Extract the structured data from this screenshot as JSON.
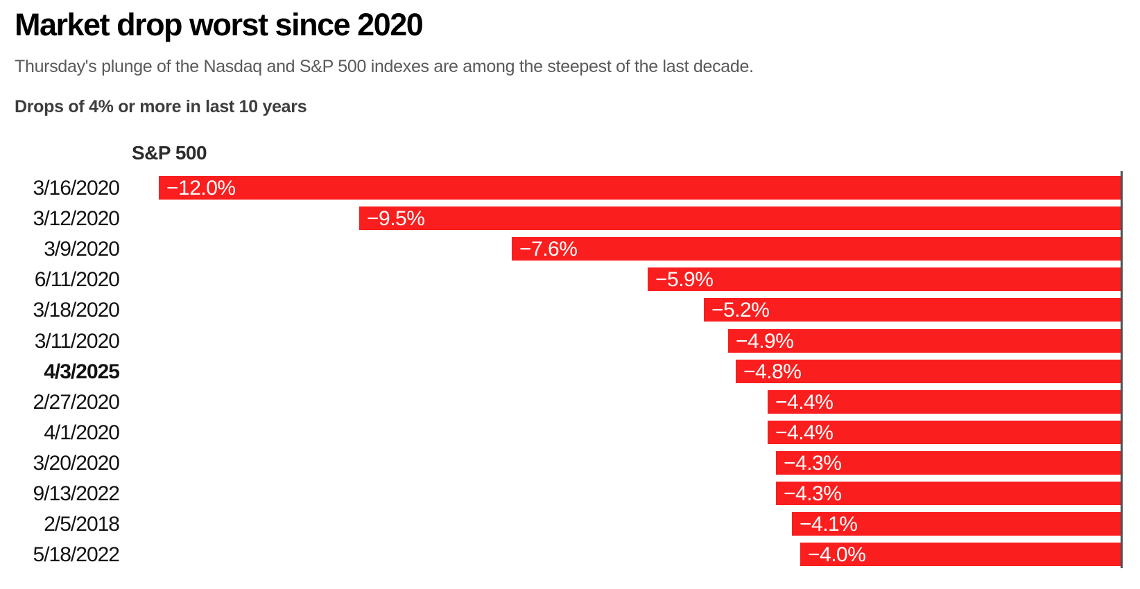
{
  "header": {
    "title": "Market drop worst since 2020",
    "subtitle": "Thursday's plunge of the Nasdaq and S&P 500 indexes are among the steepest of the last decade.",
    "kicker": "Drops of 4% or more in last 10 years"
  },
  "chart_data": {
    "type": "bar",
    "orientation": "horizontal",
    "baseline_side": "right",
    "column_header": "S&P 500",
    "categories": [
      "3/16/2020",
      "3/12/2020",
      "3/9/2020",
      "6/11/2020",
      "3/18/2020",
      "3/11/2020",
      "4/3/2025",
      "2/27/2020",
      "4/1/2020",
      "3/20/2020",
      "9/13/2022",
      "2/5/2018",
      "5/18/2022"
    ],
    "values": [
      -12.0,
      -9.5,
      -7.6,
      -5.9,
      -5.2,
      -4.9,
      -4.8,
      -4.4,
      -4.4,
      -4.3,
      -4.3,
      -4.1,
      -4.0
    ],
    "labels": [
      "−12.0%",
      "−9.5%",
      "−7.6%",
      "−5.9%",
      "−5.2%",
      "−4.9%",
      "−4.8%",
      "−4.4%",
      "−4.4%",
      "−4.3%",
      "−4.3%",
      "−4.1%",
      "−4.0%"
    ],
    "highlighted_category": "4/3/2025",
    "xlim": [
      -12.0,
      0
    ],
    "grid": "off",
    "legend": "none",
    "bar_color": "#fa1e1e",
    "value_label_color": "#ffffff",
    "axis_line_color": "#4f4f4f"
  }
}
